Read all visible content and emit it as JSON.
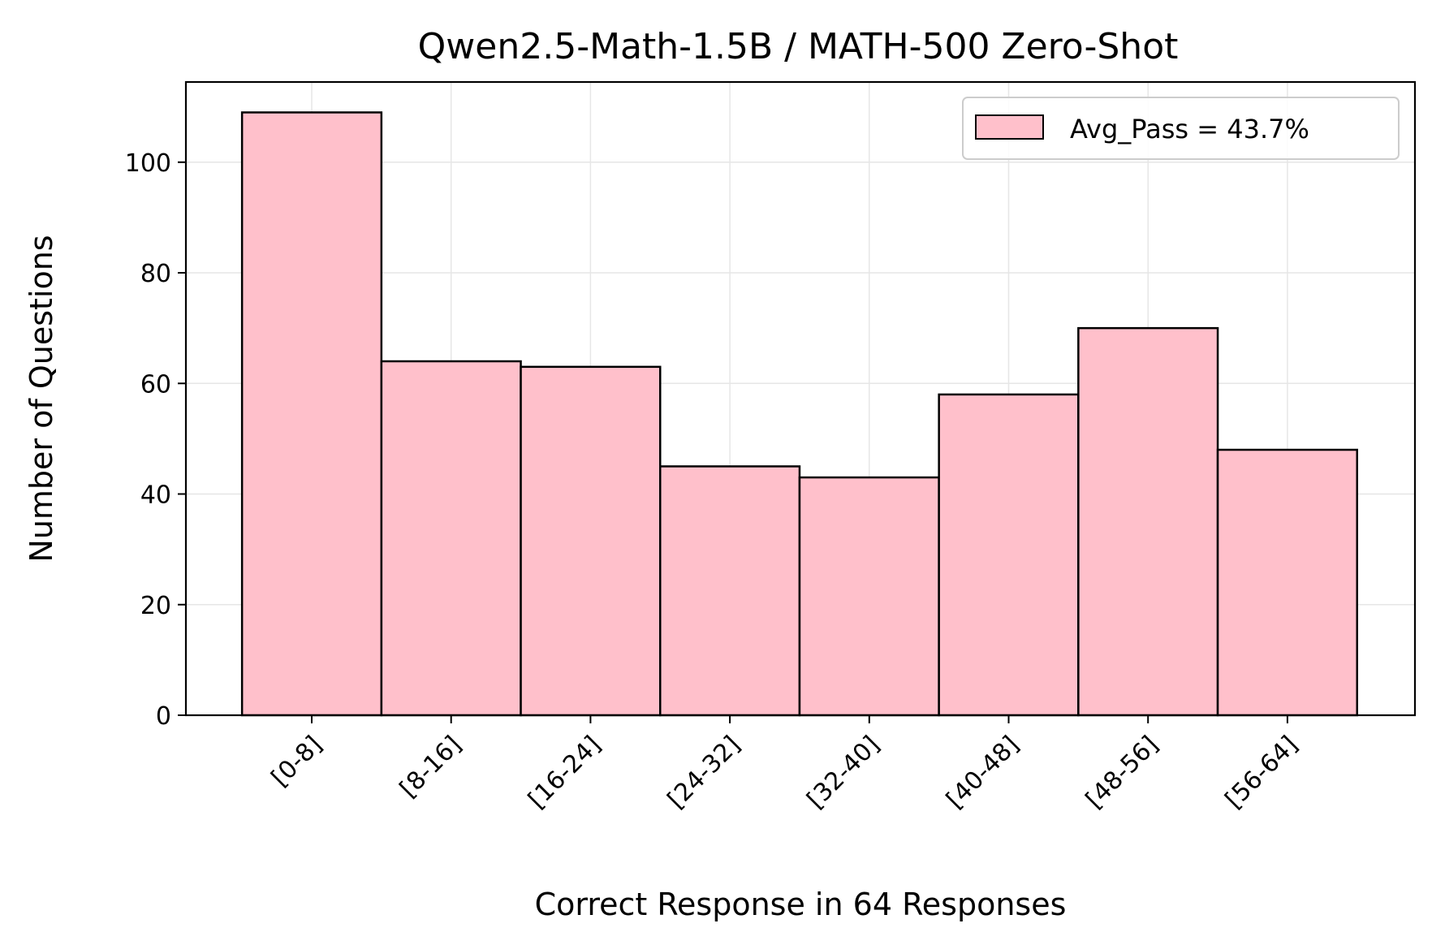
{
  "chart_data": {
    "type": "bar",
    "title": "Qwen2.5-Math-1.5B / MATH-500 Zero-Shot",
    "xlabel": "Correct Response in 64 Responses",
    "ylabel": "Number of Questions",
    "categories": [
      "[0-8]",
      "[8-16]",
      "[16-24]",
      "[24-32]",
      "[32-40]",
      "[40-48]",
      "[48-56]",
      "[56-64]"
    ],
    "series": [
      {
        "name": "Avg_Pass = 43.7%",
        "values": [
          109,
          64,
          63,
          45,
          43,
          58,
          70,
          48
        ]
      }
    ],
    "ylim": [
      0,
      114.5
    ],
    "yticks": [
      0,
      20,
      40,
      60,
      80,
      100
    ],
    "grid": true,
    "legend_position": "top-right",
    "colors": {
      "bar_fill": "#FFC0CB",
      "bar_edge": "#000000",
      "grid": "#e6e6e6"
    }
  }
}
